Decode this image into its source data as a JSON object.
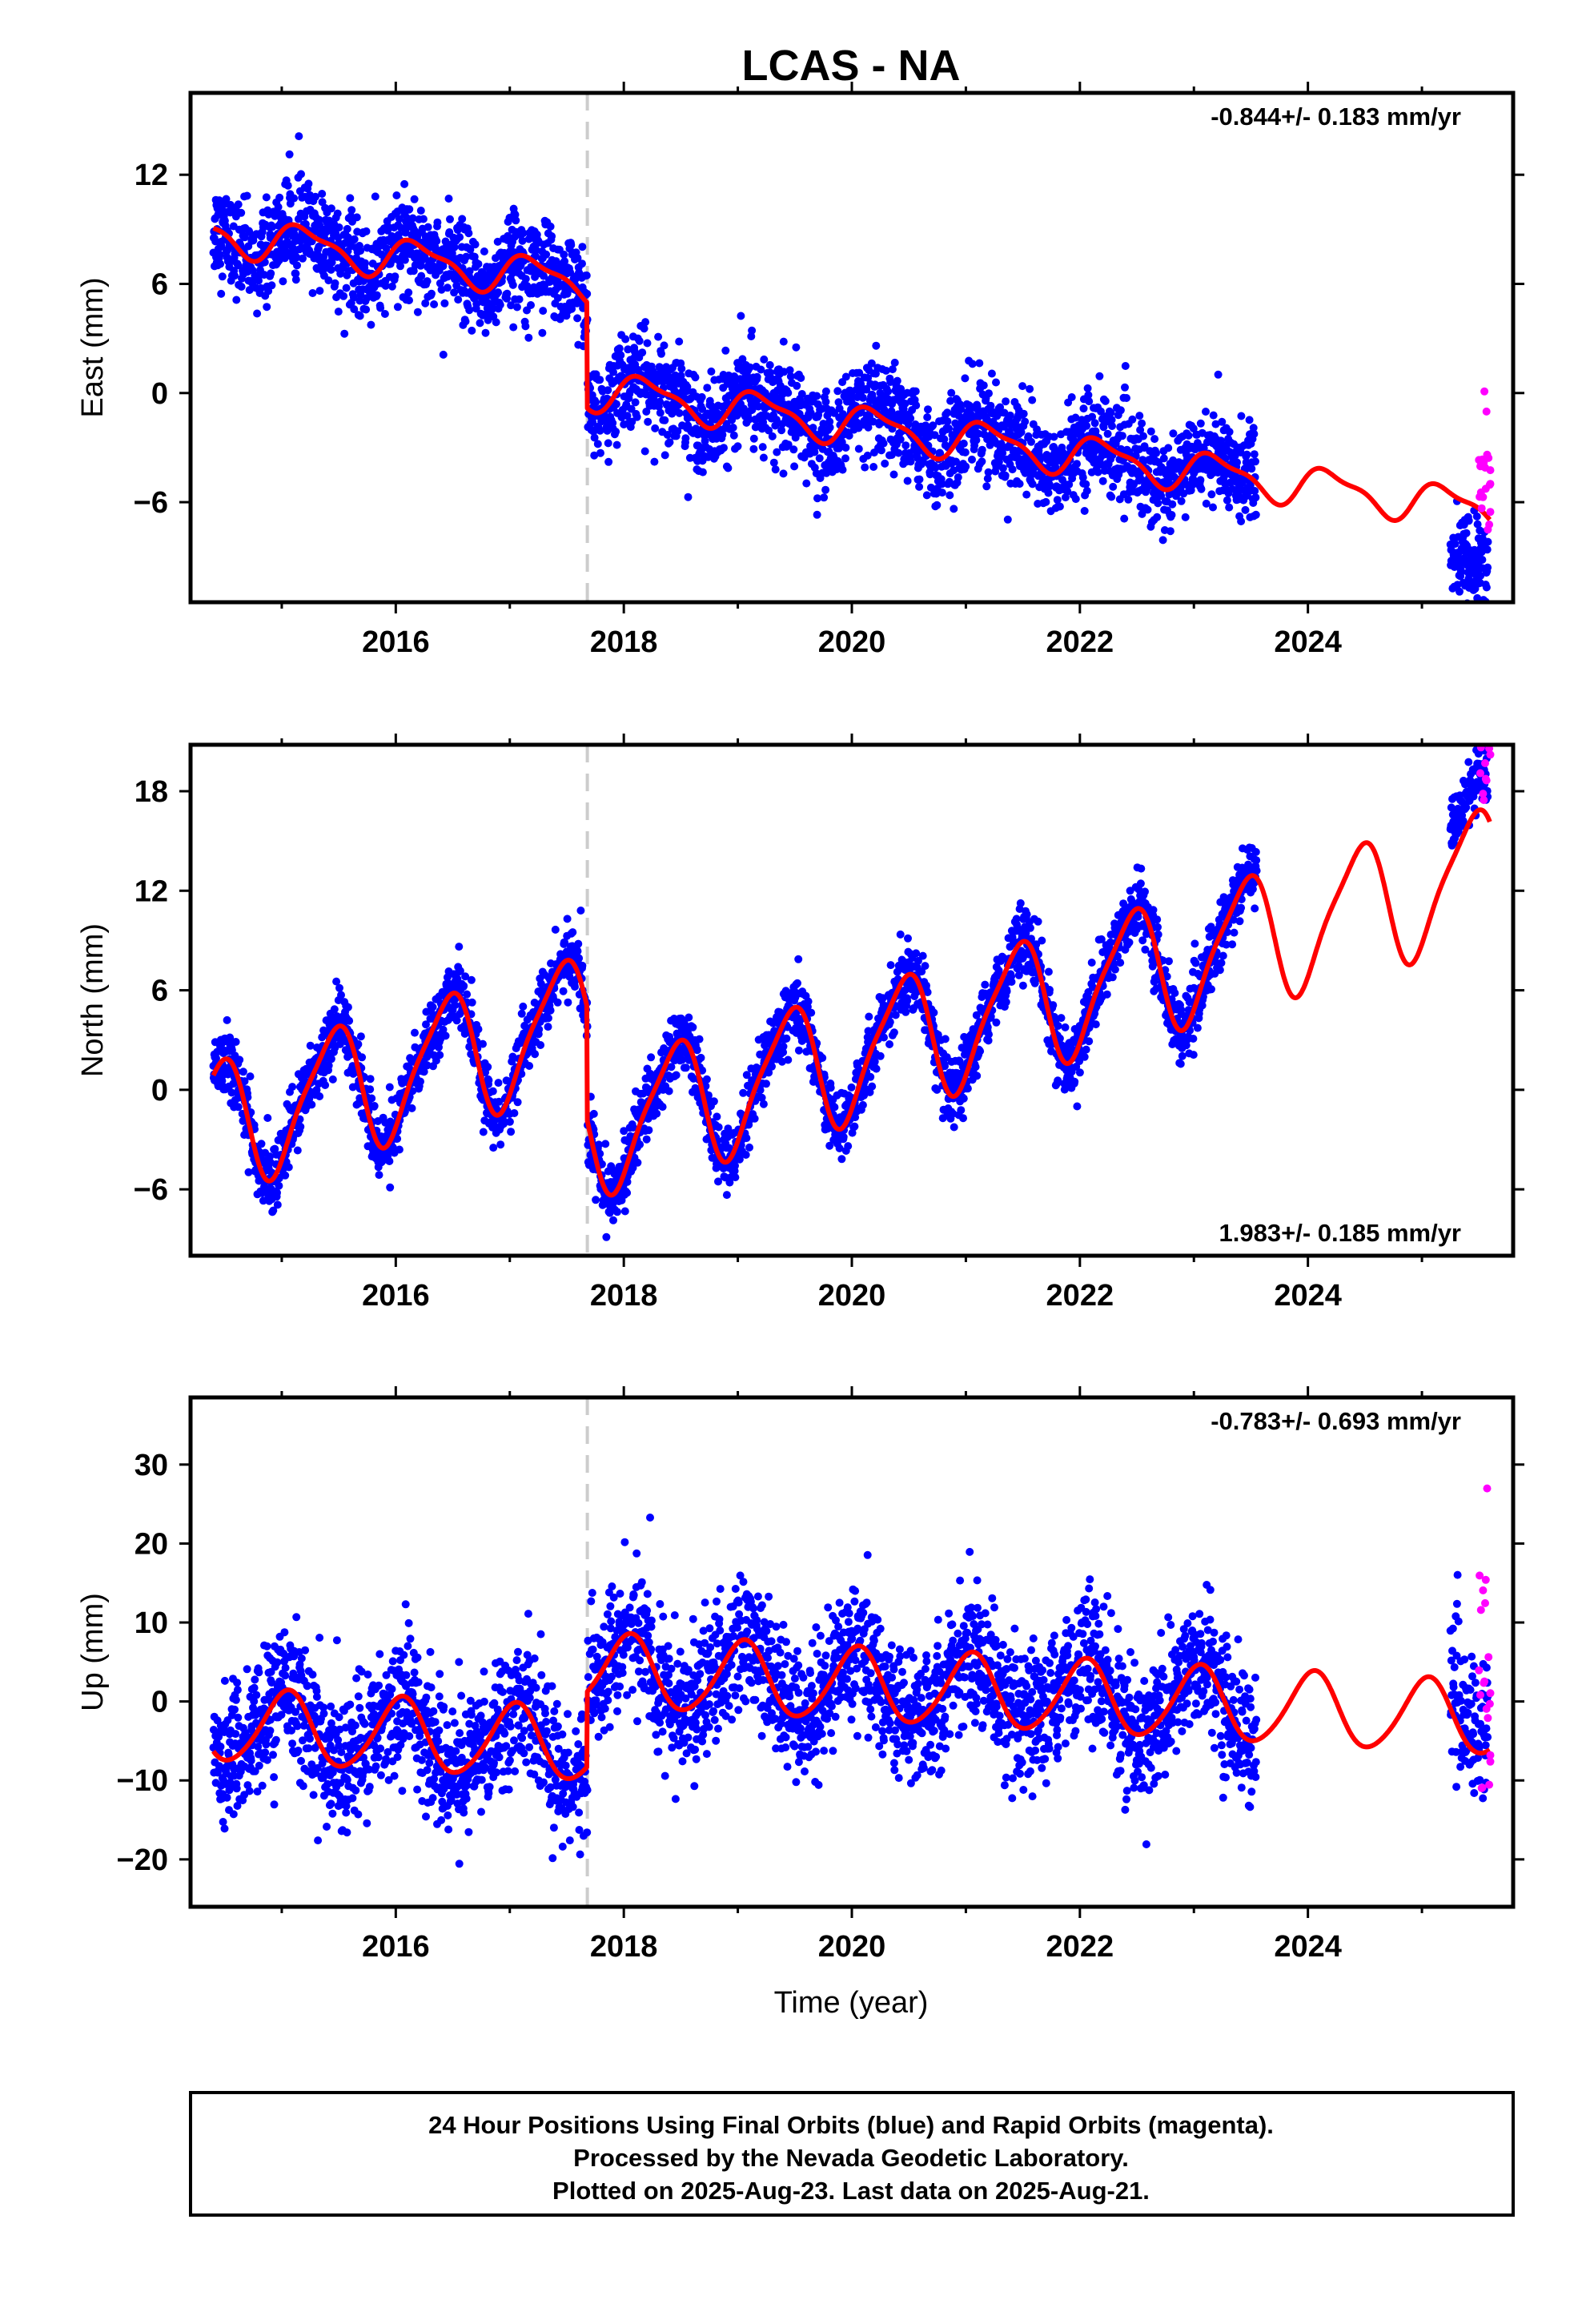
{
  "chart_data": {
    "title": "LCAS - NA",
    "type": "scatter",
    "x_label": "Time (year)",
    "x_range": [
      2014.2,
      2025.8
    ],
    "x_ticks": [
      2016,
      2018,
      2020,
      2022,
      2024
    ],
    "offset_epoch": 2017.68,
    "colors": {
      "final": "#0000ff",
      "rapid": "#ff00ff",
      "model": "#ff0000",
      "offset_line": "#cccccc"
    },
    "panels": [
      {
        "key": "east",
        "ylabel": "East (mm)",
        "ylim": [
          -11.5,
          16.5
        ],
        "yticks": [
          -6,
          0,
          6,
          12
        ],
        "rate_label": "-0.844+/- 0.183 mm/yr",
        "rate_position": "top-right",
        "model": {
          "t0": 2014.4,
          "a": 8.8,
          "rate": -0.844,
          "offset": -5.8,
          "amp1": 1.0,
          "phase1": 0.3,
          "amp2": 0.35,
          "phase2": 1.1
        },
        "noise": 1.3,
        "final_segments": [
          [
            2014.4,
            2023.55
          ],
          [
            2025.25,
            2025.58
          ]
        ],
        "final_shift_late": -3.2,
        "rapid_range": [
          2025.5,
          2025.62
        ],
        "rapid_shift": 2.5,
        "rapid_noise": 2.4
      },
      {
        "key": "north",
        "ylabel": "North (mm)",
        "ylim": [
          -10,
          20.8
        ],
        "yticks": [
          -6,
          0,
          6,
          12,
          18
        ],
        "rate_label": "1.983+/- 0.185 mm/yr",
        "rate_position": "bottom-right",
        "model": {
          "t0": 2014.4,
          "a": -2.2,
          "rate": 1.983,
          "offset": -6.8,
          "amp1": 3.8,
          "phase1": -1.2,
          "amp2": 0.8,
          "phase2": 0.4
        },
        "noise": 1.0,
        "final_segments": [
          [
            2014.4,
            2023.55
          ],
          [
            2025.25,
            2025.58
          ]
        ],
        "final_shift_late": 2.0,
        "rapid_range": [
          2025.5,
          2025.62
        ],
        "rapid_shift": 4.0,
        "rapid_noise": 1.8
      },
      {
        "key": "up",
        "ylabel": "Up (mm)",
        "ylim": [
          -26,
          38.5
        ],
        "yticks": [
          -20,
          -10,
          0,
          10,
          20,
          30
        ],
        "rate_label": "-0.783+/- 0.693 mm/yr",
        "rate_position": "top-right",
        "model": {
          "t0": 2014.4,
          "a": -3.0,
          "rate": -0.783,
          "offset": 9.5,
          "amp1": 4.6,
          "phase1": 1.3,
          "amp2": 0.5,
          "phase2": 0.2
        },
        "noise": 4.2,
        "final_segments": [
          [
            2014.4,
            2023.55
          ],
          [
            2025.25,
            2025.58
          ]
        ],
        "final_shift_late": 3.0,
        "rapid_range": [
          2025.5,
          2025.62
        ],
        "rapid_shift": 8.0,
        "rapid_noise": 9.0
      }
    ],
    "caption": [
      "24 Hour Positions Using Final Orbits (blue) and Rapid Orbits (magenta).",
      "Processed by the Nevada Geodetic Laboratory.",
      "Plotted on 2025-Aug-23. Last data on 2025-Aug-21."
    ]
  }
}
